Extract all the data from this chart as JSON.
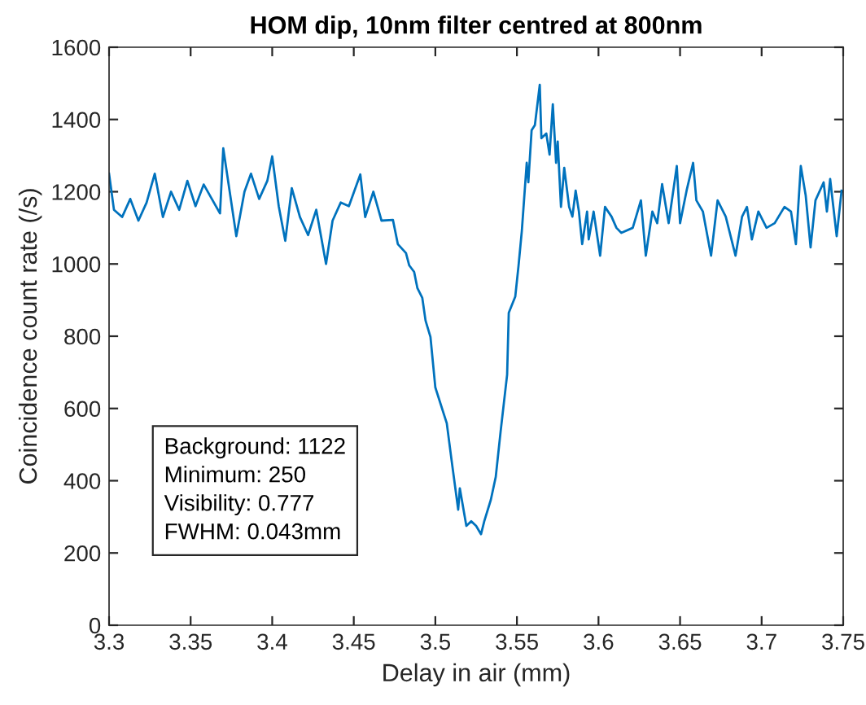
{
  "chart_data": {
    "type": "line",
    "title": "HOM dip, 10nm filter centred at 800nm",
    "xlabel": "Delay in air (mm)",
    "ylabel": "Coincidence count rate (/s)",
    "annotations": [
      "Background: 1122",
      "Minimum: 250",
      "Visibility: 0.777",
      "FWHM: 0.043mm"
    ],
    "xlim": [
      3.3,
      3.75
    ],
    "xticks": [
      3.3,
      3.35,
      3.4,
      3.45,
      3.5,
      3.55,
      3.6,
      3.65,
      3.7,
      3.75
    ],
    "ylim": [
      0,
      1600
    ],
    "yticks": [
      0,
      200,
      400,
      600,
      800,
      1000,
      1200,
      1400,
      1600
    ],
    "grid": false,
    "legend": false,
    "marker": "none",
    "line_style": "solid",
    "series": [
      {
        "color": "#0072bd",
        "x": [
          3.3,
          3.303,
          3.308,
          3.313,
          3.318,
          3.323,
          3.328,
          3.333,
          3.338,
          3.343,
          3.348,
          3.353,
          3.358,
          3.363,
          3.368,
          3.37,
          3.378,
          3.383,
          3.387,
          3.392,
          3.397,
          3.4,
          3.404,
          3.408,
          3.412,
          3.417,
          3.422,
          3.427,
          3.433,
          3.437,
          3.442,
          3.447,
          3.454,
          3.457,
          3.462,
          3.467,
          3.474,
          3.477,
          3.482,
          3.484,
          3.487,
          3.489,
          3.492,
          3.494,
          3.497,
          3.5,
          3.507,
          3.51,
          3.514,
          3.515,
          3.519,
          3.522,
          3.525,
          3.528,
          3.53,
          3.534,
          3.537,
          3.54,
          3.544,
          3.545,
          3.549,
          3.551,
          3.553,
          3.556,
          3.557,
          3.559,
          3.561,
          3.564,
          3.565,
          3.568,
          3.57,
          3.572,
          3.574,
          3.575,
          3.577,
          3.579,
          3.582,
          3.584,
          3.586,
          3.588,
          3.59,
          3.593,
          3.594,
          3.597,
          3.601,
          3.604,
          3.608,
          3.611,
          3.614,
          3.621,
          3.626,
          3.629,
          3.633,
          3.636,
          3.639,
          3.643,
          3.648,
          3.65,
          3.654,
          3.658,
          3.66,
          3.664,
          3.669,
          3.673,
          3.678,
          3.684,
          3.688,
          3.691,
          3.694,
          3.698,
          3.703,
          3.708,
          3.714,
          3.718,
          3.721,
          3.724,
          3.727,
          3.73,
          3.733,
          3.738,
          3.74,
          3.742,
          3.746,
          3.749
        ],
        "values": [
          1250,
          1150,
          1130,
          1180,
          1120,
          1170,
          1250,
          1130,
          1200,
          1150,
          1230,
          1160,
          1220,
          1180,
          1140,
          1320,
          1077,
          1200,
          1250,
          1180,
          1230,
          1298,
          1160,
          1064,
          1210,
          1130,
          1080,
          1150,
          1000,
          1120,
          1170,
          1160,
          1248,
          1130,
          1200,
          1120,
          1122,
          1055,
          1030,
          996,
          978,
          933,
          906,
          843,
          798,
          658,
          559,
          455,
          320,
          379,
          275,
          288,
          275,
          252,
          288,
          347,
          410,
          536,
          694,
          865,
          910,
          996,
          1091,
          1280,
          1226,
          1370,
          1384,
          1496,
          1348,
          1361,
          1303,
          1442,
          1280,
          1339,
          1158,
          1266,
          1158,
          1131,
          1203,
          1145,
          1055,
          1145,
          1068,
          1145,
          1023,
          1158,
          1131,
          1100,
          1086,
          1100,
          1176,
          1023,
          1145,
          1113,
          1221,
          1113,
          1271,
          1113,
          1203,
          1280,
          1176,
          1145,
          1023,
          1176,
          1131,
          1023,
          1131,
          1158,
          1068,
          1145,
          1100,
          1113,
          1158,
          1145,
          1055,
          1271,
          1190,
          1046,
          1176,
          1226,
          1145,
          1235,
          1077,
          1203
        ]
      }
    ]
  }
}
